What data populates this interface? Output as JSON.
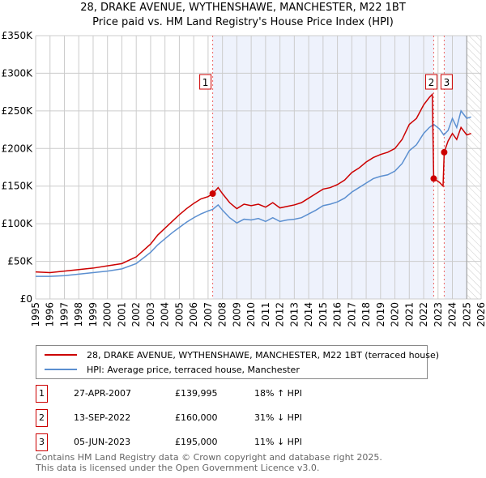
{
  "chart_data": {
    "type": "line",
    "title": "28, DRAKE AVENUE, WYTHENSHAWE, MANCHESTER, M22 1BT",
    "subtitle": "Price paid vs. HM Land Registry's House Price Index (HPI)",
    "xlim": [
      1995,
      2026
    ],
    "ylim": [
      0,
      350000
    ],
    "x_ticks": [
      "1995",
      "1996",
      "1997",
      "1998",
      "1999",
      "2000",
      "2001",
      "2002",
      "2003",
      "2004",
      "2005",
      "2006",
      "2007",
      "2008",
      "2009",
      "2010",
      "2011",
      "2012",
      "2013",
      "2014",
      "2015",
      "2016",
      "2017",
      "2018",
      "2019",
      "2020",
      "2021",
      "2022",
      "2023",
      "2024",
      "2025",
      "2026"
    ],
    "y_ticks": [
      {
        "v": 0,
        "label": "£0"
      },
      {
        "v": 50000,
        "label": "£50K"
      },
      {
        "v": 100000,
        "label": "£100K"
      },
      {
        "v": 150000,
        "label": "£150K"
      },
      {
        "v": 200000,
        "label": "£200K"
      },
      {
        "v": 250000,
        "label": "£250K"
      },
      {
        "v": 300000,
        "label": "£300K"
      },
      {
        "v": 350000,
        "label": "£350K"
      }
    ],
    "grid": true,
    "series": [
      {
        "name": "28, DRAKE AVENUE, WYTHENSHAWE, MANCHESTER, M22 1BT (terraced house)",
        "color": "#cc0000",
        "x": [
          1995,
          1996,
          1997,
          1998,
          1999,
          2000,
          2001,
          2002,
          2003,
          2003.5,
          2004,
          2004.5,
          2005,
          2005.5,
          2006,
          2006.5,
          2007,
          2007.32,
          2007.7,
          2008,
          2008.5,
          2009,
          2009.5,
          2010,
          2010.5,
          2011,
          2011.5,
          2012,
          2012.5,
          2013,
          2013.5,
          2014,
          2014.5,
          2015,
          2015.5,
          2016,
          2016.5,
          2017,
          2017.5,
          2018,
          2018.5,
          2019,
          2019.5,
          2020,
          2020.5,
          2021,
          2021.5,
          2022,
          2022.4,
          2022.6,
          2022.7,
          2023.1,
          2023.35,
          2023.43,
          2023.7,
          2024,
          2024.3,
          2024.6,
          2025,
          2025.3
        ],
        "values": [
          36000,
          35000,
          37000,
          39000,
          41000,
          44000,
          47000,
          56000,
          73000,
          85000,
          94000,
          103000,
          112000,
          120000,
          127000,
          133000,
          136000,
          139995,
          148000,
          140000,
          128000,
          120000,
          126000,
          124000,
          126000,
          122000,
          128000,
          121000,
          123000,
          125000,
          128000,
          134000,
          140000,
          146000,
          148000,
          152000,
          158000,
          168000,
          174000,
          182000,
          188000,
          192000,
          195000,
          200000,
          212000,
          232000,
          240000,
          258000,
          268000,
          272000,
          160000,
          155000,
          150000,
          195000,
          210000,
          220000,
          212000,
          228000,
          218000,
          220000
        ]
      },
      {
        "name": "HPI: Average price, terraced house, Manchester",
        "color": "#5b8fd0",
        "x": [
          1995,
          1996,
          1997,
          1998,
          1999,
          2000,
          2001,
          2002,
          2003,
          2003.5,
          2004,
          2004.5,
          2005,
          2005.5,
          2006,
          2006.5,
          2007,
          2007.32,
          2007.7,
          2008,
          2008.5,
          2009,
          2009.5,
          2010,
          2010.5,
          2011,
          2011.5,
          2012,
          2012.5,
          2013,
          2013.5,
          2014,
          2014.5,
          2015,
          2015.5,
          2016,
          2016.5,
          2017,
          2017.5,
          2018,
          2018.5,
          2019,
          2019.5,
          2020,
          2020.5,
          2021,
          2021.5,
          2022,
          2022.4,
          2022.7,
          2023.1,
          2023.4,
          2023.7,
          2024,
          2024.3,
          2024.6,
          2025,
          2025.3
        ],
        "values": [
          30000,
          30000,
          31000,
          33000,
          35000,
          37000,
          40000,
          47000,
          62000,
          72000,
          80000,
          88000,
          95000,
          102000,
          108000,
          113000,
          117000,
          119000,
          125000,
          118000,
          108000,
          101000,
          106000,
          105000,
          107000,
          103000,
          108000,
          103000,
          105000,
          106000,
          108000,
          113000,
          118000,
          124000,
          126000,
          129000,
          134000,
          142000,
          148000,
          154000,
          160000,
          163000,
          165000,
          170000,
          180000,
          197000,
          205000,
          220000,
          228000,
          232000,
          226000,
          218000,
          224000,
          240000,
          228000,
          250000,
          240000,
          242000
        ]
      }
    ],
    "sales": [
      {
        "id": "1",
        "x": 2007.32,
        "value": 139995,
        "date": "27-APR-2007",
        "price": "£139,995",
        "hpi": "18% ↑ HPI"
      },
      {
        "id": "2",
        "x": 2022.7,
        "value": 160000,
        "date": "13-SEP-2022",
        "price": "£160,000",
        "hpi": "31% ↓ HPI"
      },
      {
        "id": "3",
        "x": 2023.43,
        "value": 195000,
        "date": "05-JUN-2023",
        "price": "£195,000",
        "hpi": "11% ↓ HPI"
      }
    ],
    "legend_position": "below"
  },
  "footer": {
    "line1": "Contains HM Land Registry data © Crown copyright and database right 2025.",
    "line2": "This data is licensed under the Open Government Licence v3.0."
  }
}
